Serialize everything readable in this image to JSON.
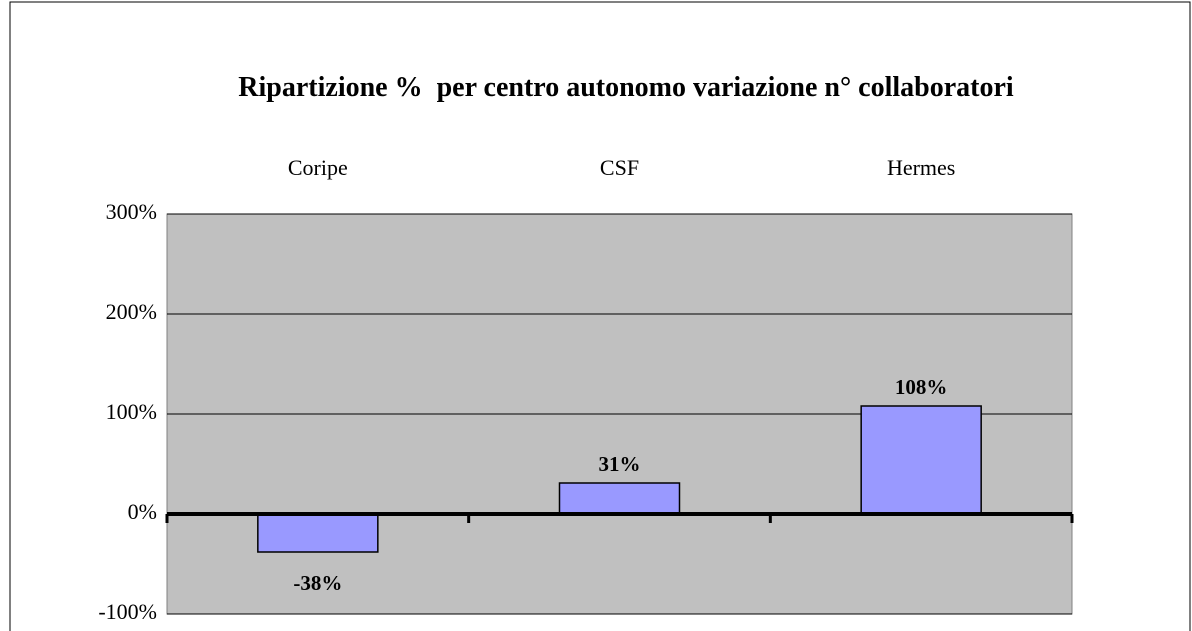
{
  "chart_data": {
    "type": "bar",
    "title": "Ripartizione %  per centro autonomo variazione n° collaboratori",
    "categories": [
      "Coripe",
      "CSF",
      "Hermes"
    ],
    "values": [
      -38,
      31,
      108
    ],
    "value_labels": [
      "-38%",
      "31%",
      "108%"
    ],
    "color": "#9999ff",
    "ylim": [
      -100,
      300
    ],
    "yticks": [
      {
        "value": -100,
        "label": "-100%"
      },
      {
        "value": 0,
        "label": "0%"
      },
      {
        "value": 100,
        "label": "100%"
      },
      {
        "value": 200,
        "label": "200%"
      },
      {
        "value": 300,
        "label": "300%"
      }
    ],
    "grid": true
  }
}
